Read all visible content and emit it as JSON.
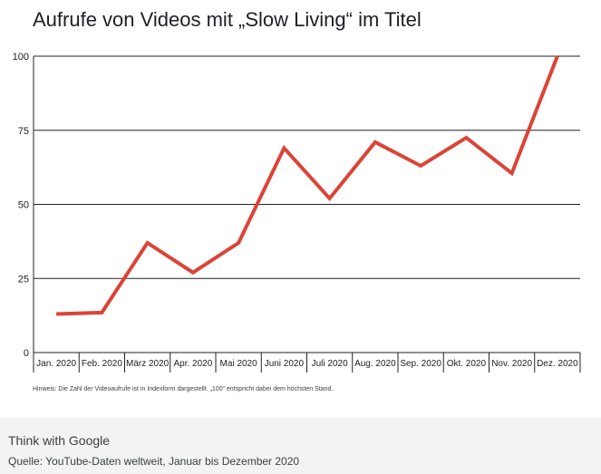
{
  "chart_data": {
    "type": "line",
    "title": "Aufrufe von Videos mit „Slow Living“ im Titel",
    "categories": [
      "Jan. 2020",
      "Feb. 2020",
      "März 2020",
      "Apr. 2020",
      "Mai 2020",
      "Juni 2020",
      "Juli 2020",
      "Aug. 2020",
      "Sep. 2020",
      "Okt. 2020",
      "Nov. 2020",
      "Dez. 2020"
    ],
    "series": [
      {
        "values": [
          13,
          13.5,
          37,
          27,
          37,
          69,
          52,
          71,
          63,
          72.5,
          60.5,
          100
        ]
      }
    ],
    "ylim": [
      0,
      100
    ],
    "yticks": [
      0,
      25,
      50,
      75,
      100
    ],
    "grid": true,
    "line_color": "#db4437",
    "note": "Hinweis: Die Zahl der Videoaufrufe ist in Indexform dargestellt. „100“ entspricht dabei dem höchsten Stand."
  },
  "footer": {
    "brand": "Think with Google",
    "source": "Quelle: YouTube-Daten weltweit, Januar bis Dezember 2020"
  }
}
